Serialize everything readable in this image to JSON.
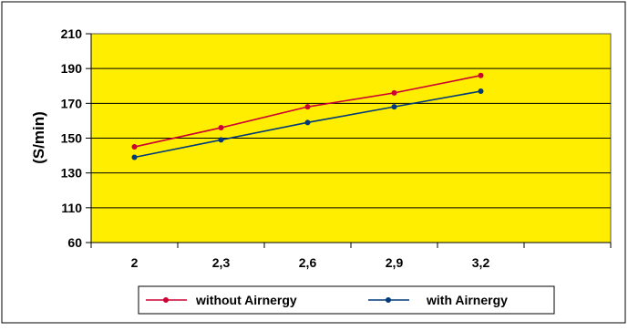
{
  "chart_data": {
    "type": "line",
    "ylabel": "(S/min)",
    "xlabel": "",
    "x_categories": [
      "2",
      "2,3",
      "2,6",
      "2,9",
      "3,2",
      ""
    ],
    "y_ticks": [
      "210",
      "190",
      "170",
      "150",
      "130",
      "110",
      "60"
    ],
    "grid": true,
    "legend_position": "bottom",
    "series": [
      {
        "name": "without Airnergy",
        "color": "#cc0033",
        "values": [
          145,
          156,
          168,
          176,
          186
        ]
      },
      {
        "name": "with Airnergy",
        "color": "#003a7a",
        "values": [
          139,
          149,
          159,
          168,
          177
        ]
      }
    ],
    "plot_background": "#ffee00"
  }
}
